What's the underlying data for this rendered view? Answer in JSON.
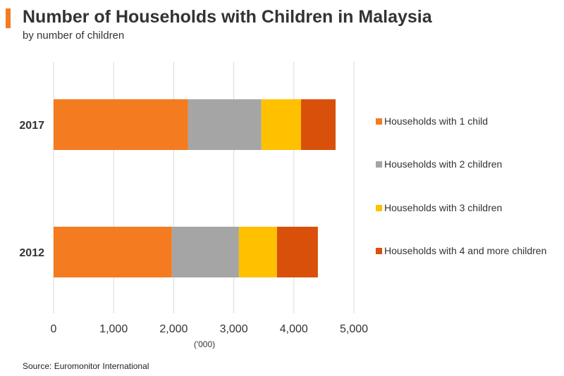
{
  "header": {
    "title": "Number of Households with Children in Malaysia",
    "subtitle": "by number of children",
    "accent_color": "#F47B20"
  },
  "footer": {
    "source": "Source: Euromonitor  International"
  },
  "chart_data": {
    "type": "bar",
    "orientation": "horizontal",
    "stacked": true,
    "title": "Number of Households with Children in Malaysia",
    "subtitle": "by number of children",
    "categories": [
      "2017",
      "2012"
    ],
    "series": [
      {
        "name": "Households with 1 child",
        "color": "#F47B20",
        "values": [
          2240,
          1970
        ]
      },
      {
        "name": "Households with 2 children",
        "color": "#A5A5A5",
        "values": [
          1220,
          1115
        ]
      },
      {
        "name": "Households with 3 children",
        "color": "#FFC000",
        "values": [
          660,
          635
        ]
      },
      {
        "name": "Households with 4 and more children",
        "color": "#D9500A",
        "values": [
          575,
          680
        ]
      }
    ],
    "xlabel": "('000)",
    "xlim": [
      0,
      5000
    ],
    "xticks": [
      "0",
      "1,000",
      "2,000",
      "3,000",
      "4,000",
      "5,000"
    ],
    "xtick_values": [
      0,
      1000,
      2000,
      3000,
      4000,
      5000
    ],
    "grid": true,
    "legend_position": "right"
  }
}
